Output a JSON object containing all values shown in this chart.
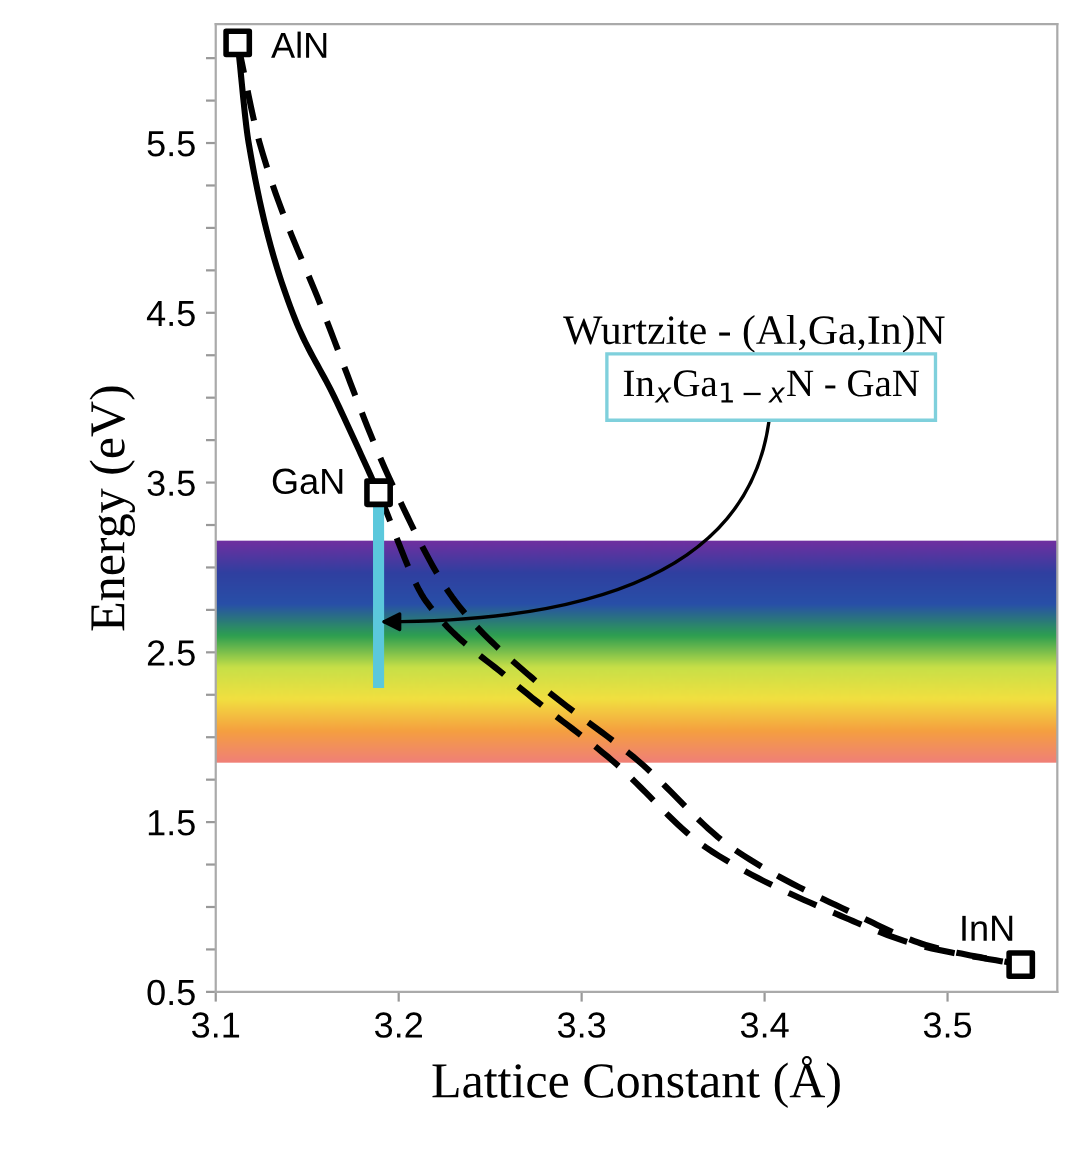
{
  "chart_data": {
    "type": "line",
    "xlabel": "Lattice Constant (Å)",
    "ylabel": "Energy (eV)",
    "xlim": [
      3.1,
      3.56
    ],
    "ylim": [
      0.5,
      6.2
    ],
    "xticks": [
      3.1,
      3.2,
      3.3,
      3.4,
      3.5
    ],
    "yticks": [
      0.5,
      {
        "value": 0.75,
        "label": null
      },
      {
        "value": 1.0,
        "label": null
      },
      {
        "value": 1.25,
        "label": null
      },
      1.5,
      {
        "value": 1.75,
        "label": null
      },
      {
        "value": 2.0,
        "label": null
      },
      {
        "value": 2.25,
        "label": null
      },
      2.5,
      {
        "value": 2.75,
        "label": null
      },
      {
        "value": 3.0,
        "label": null
      },
      {
        "value": 3.25,
        "label": null
      },
      3.5,
      {
        "value": 3.75,
        "label": null
      },
      {
        "value": 4.0,
        "label": null
      },
      {
        "value": 4.25,
        "label": null
      },
      4.5,
      {
        "value": 4.75,
        "label": null
      },
      {
        "value": 5.0,
        "label": null
      },
      {
        "value": 5.25,
        "label": null
      },
      5.5,
      {
        "value": 5.75,
        "label": null
      },
      {
        "value": 6.0,
        "label": null
      }
    ],
    "grid": false,
    "bands": [
      {
        "axis": "y",
        "from": 1.85,
        "to": 3.15,
        "color": [
          "#f08078",
          "#f5a040",
          "#f2e040",
          "#c8e048",
          "#2ea050",
          "#2850a8",
          "#3040a0",
          "#7030a0"
        ]
      }
    ],
    "series": [
      {
        "color": "#000000",
        "line_style": "solid",
        "marker": "none",
        "x": [
          3.112,
          3.118,
          3.142,
          3.165,
          3.189
        ],
        "values": [
          6.09,
          5.5,
          4.5,
          4.0,
          3.44
        ]
      },
      {
        "color": "#000000",
        "line_style": "dashed",
        "marker": "none",
        "x": [
          3.112,
          3.124,
          3.159,
          3.196,
          3.231,
          3.275,
          3.331,
          3.382,
          3.449,
          3.49,
          3.54
        ],
        "values": [
          6.09,
          5.5,
          4.5,
          3.5,
          2.8,
          2.33,
          1.86,
          1.35,
          0.96,
          0.77,
          0.66
        ]
      },
      {
        "color": "#000000",
        "line_style": "dashed",
        "marker": "none",
        "x": [
          3.189,
          3.215,
          3.262,
          3.317,
          3.368,
          3.439,
          3.486,
          3.54
        ],
        "values": [
          3.44,
          2.8,
          2.33,
          1.86,
          1.35,
          0.96,
          0.77,
          0.66
        ]
      },
      {
        "color": "#5bc8dc",
        "line_style": "solid",
        "marker": "none",
        "x": [
          3.189,
          3.189
        ],
        "values": [
          3.36,
          2.29
        ]
      },
      {
        "type": "scatter",
        "color": "#000000",
        "marker": "square",
        "x": [
          3.112,
          3.189,
          3.54
        ],
        "values": [
          6.09,
          3.44,
          0.66
        ]
      }
    ],
    "annotations": [
      {
        "text": "AlN",
        "x": 3.112,
        "y": 6.09
      },
      {
        "text": "GaN",
        "x": 3.189,
        "y": 3.44
      },
      {
        "text": "InN",
        "x": 3.54,
        "y": 0.66
      },
      "Wurtzite - (Al,Ga,In)N",
      {
        "text": "In$_{x}$Ga$_{1−x}$N - GaN",
        "x": 3.19,
        "y": 2.68
      }
    ]
  }
}
